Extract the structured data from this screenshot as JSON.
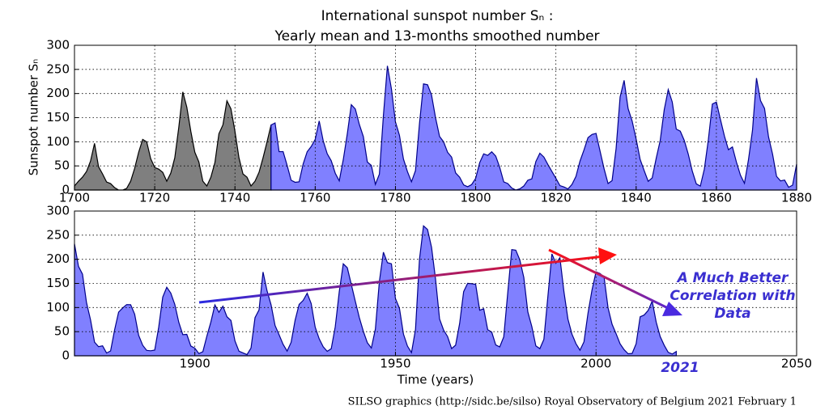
{
  "chart_data": [
    {
      "type": "area",
      "title": "International sunspot number Sₙ :",
      "subtitle": "Yearly mean and 13-months smoothed number",
      "ylabel": "Sunspot number Sₙ",
      "x": [
        1700,
        1701,
        1702,
        1703,
        1704,
        1705,
        1706,
        1707,
        1708,
        1709,
        1710,
        1711,
        1712,
        1713,
        1714,
        1715,
        1716,
        1717,
        1718,
        1719,
        1720,
        1721,
        1722,
        1723,
        1724,
        1725,
        1726,
        1727,
        1728,
        1729,
        1730,
        1731,
        1732,
        1733,
        1734,
        1735,
        1736,
        1737,
        1738,
        1739,
        1740,
        1741,
        1742,
        1743,
        1744,
        1745,
        1746,
        1747,
        1748,
        1749,
        1750,
        1751,
        1752,
        1753,
        1754,
        1755,
        1756,
        1757,
        1758,
        1759,
        1760,
        1761,
        1762,
        1763,
        1764,
        1765,
        1766,
        1767,
        1768,
        1769,
        1770,
        1771,
        1772,
        1773,
        1774,
        1775,
        1776,
        1777,
        1778,
        1779,
        1780,
        1781,
        1782,
        1783,
        1784,
        1785,
        1786,
        1787,
        1788,
        1789,
        1790,
        1791,
        1792,
        1793,
        1794,
        1795,
        1796,
        1797,
        1798,
        1799,
        1800,
        1801,
        1802,
        1803,
        1804,
        1805,
        1806,
        1807,
        1808,
        1809,
        1810,
        1811,
        1812,
        1813,
        1814,
        1815,
        1816,
        1817,
        1818,
        1819,
        1820,
        1821,
        1822,
        1823,
        1824,
        1825,
        1826,
        1827,
        1828,
        1829,
        1830,
        1831,
        1832,
        1833,
        1834,
        1835,
        1836,
        1837,
        1838,
        1839,
        1840,
        1841,
        1842,
        1843,
        1844,
        1845,
        1846,
        1847,
        1848,
        1849,
        1850,
        1851,
        1852,
        1853,
        1854,
        1855,
        1856,
        1857,
        1858,
        1859,
        1860,
        1861,
        1862,
        1863,
        1864,
        1865,
        1866,
        1867,
        1868,
        1869,
        1870,
        1871,
        1872,
        1873,
        1874,
        1875,
        1876,
        1877,
        1878,
        1879,
        1880
      ],
      "series": [
        {
          "color": "#7f7f7f",
          "edge_color": "#000000",
          "values": [
            8.3,
            18.3,
            26.7,
            38.3,
            60,
            96.7,
            48.3,
            33.3,
            16.7,
            13.3,
            5,
            0,
            0,
            3.3,
            18.3,
            45,
            78.3,
            105,
            100,
            65,
            46.7,
            43.3,
            36.7,
            18.3,
            35,
            66.7,
            130,
            203.3,
            171.7,
            121.7,
            78.3,
            58.3,
            18.3,
            8.3,
            26.7,
            56.7,
            116.7,
            135,
            185,
            168.3,
            121.7,
            66.7,
            33.3,
            26.7,
            8.3,
            18.3,
            36.7,
            66.7,
            100,
            134.8,
            null,
            null,
            null,
            null,
            null,
            null,
            null,
            null,
            null,
            null,
            null,
            null,
            null,
            null,
            null,
            null,
            null,
            null,
            null,
            null,
            null,
            null,
            null,
            null,
            null,
            null,
            null,
            null,
            null,
            null,
            null,
            null,
            null,
            null,
            null,
            null,
            null,
            null,
            null,
            null,
            null,
            null,
            null,
            null,
            null,
            null,
            null,
            null,
            null,
            null,
            null,
            null,
            null,
            null,
            null,
            null,
            null,
            null,
            null,
            null,
            null,
            null,
            null,
            null,
            null,
            null,
            null,
            null,
            null,
            null,
            null,
            null,
            null,
            null,
            null,
            null,
            null,
            null,
            null,
            null,
            null,
            null,
            null,
            null,
            null,
            null,
            null,
            null,
            null,
            null,
            null,
            null,
            null,
            null,
            null,
            null,
            null,
            null,
            null,
            null,
            null,
            null,
            null,
            null,
            null,
            null,
            null,
            null,
            null,
            null,
            null,
            null,
            null,
            null,
            null,
            null,
            null,
            null,
            null,
            null,
            null,
            null,
            null,
            null,
            null,
            null,
            null,
            null,
            null,
            null,
            null
          ]
        },
        {
          "color": "#8080ff",
          "edge_color": "#00008b",
          "values": [
            null,
            null,
            null,
            null,
            null,
            null,
            null,
            null,
            null,
            null,
            null,
            null,
            null,
            null,
            null,
            null,
            null,
            null,
            null,
            null,
            null,
            null,
            null,
            null,
            null,
            null,
            null,
            null,
            null,
            null,
            null,
            null,
            null,
            null,
            null,
            null,
            null,
            null,
            null,
            null,
            null,
            null,
            null,
            null,
            null,
            null,
            null,
            null,
            null,
            134.8,
            139,
            79.5,
            79.7,
            51.2,
            20.3,
            16,
            17,
            54,
            79.3,
            90,
            104.8,
            143.2,
            102,
            75.2,
            60.7,
            34.8,
            19,
            63,
            116.3,
            176.8,
            168,
            136,
            110.8,
            58,
            51,
            11.7,
            33,
            154.2,
            257.3,
            209.8,
            141.3,
            113.5,
            64.2,
            38,
            17,
            40.2,
            138.2,
            220,
            218.2,
            196.8,
            149.8,
            111,
            100,
            78.2,
            68.3,
            35.5,
            26.7,
            10.7,
            6.8,
            11.3,
            24.2,
            56.7,
            75,
            71.8,
            79.2,
            70.3,
            46.8,
            16.8,
            13.5,
            4.2,
            0,
            2.3,
            8.3,
            20.3,
            23.2,
            59,
            76.3,
            68.3,
            52.9,
            38.5,
            24.2,
            9.2,
            6.3,
            2.2,
            11.4,
            28.2,
            59.9,
            83,
            108.5,
            115.2,
            117.4,
            80.8,
            44.3,
            13.4,
            19.5,
            85.8,
            192.7,
            227.3,
            168.7,
            143,
            105.5,
            63.3,
            40.3,
            18.1,
            25.1,
            65.8,
            102.7,
            166.3,
            208.3,
            182.5,
            126.3,
            122,
            102.7,
            74.1,
            39,
            12.7,
            8.2,
            43.4,
            104.4,
            178.3,
            182.2,
            146.6,
            112.1,
            83.5,
            89.2,
            57.8,
            30.7,
            13.9,
            62.8,
            123.6,
            232,
            185.3,
            169.2,
            110.1,
            74.5,
            28.3,
            18.9,
            20.7,
            5.7,
            10,
            53.7
          ]
        }
      ],
      "xlim": [
        1700,
        1880
      ],
      "xticks": [
        1700,
        1720,
        1740,
        1760,
        1780,
        1800,
        1820,
        1840,
        1860,
        1880
      ],
      "ylim": [
        0,
        300
      ],
      "yticks": [
        0,
        50,
        100,
        150,
        200,
        250,
        300
      ],
      "grid": true
    },
    {
      "type": "area",
      "xlabel": "Time (years)",
      "x": [
        1870,
        1871,
        1872,
        1873,
        1874,
        1875,
        1876,
        1877,
        1878,
        1879,
        1880,
        1881,
        1882,
        1883,
        1884,
        1885,
        1886,
        1887,
        1888,
        1889,
        1890,
        1891,
        1892,
        1893,
        1894,
        1895,
        1896,
        1897,
        1898,
        1899,
        1900,
        1901,
        1902,
        1903,
        1904,
        1905,
        1906,
        1907,
        1908,
        1909,
        1910,
        1911,
        1912,
        1913,
        1914,
        1915,
        1916,
        1917,
        1918,
        1919,
        1920,
        1921,
        1922,
        1923,
        1924,
        1925,
        1926,
        1927,
        1928,
        1929,
        1930,
        1931,
        1932,
        1933,
        1934,
        1935,
        1936,
        1937,
        1938,
        1939,
        1940,
        1941,
        1942,
        1943,
        1944,
        1945,
        1946,
        1947,
        1948,
        1949,
        1950,
        1951,
        1952,
        1953,
        1954,
        1955,
        1956,
        1957,
        1958,
        1959,
        1960,
        1961,
        1962,
        1963,
        1964,
        1965,
        1966,
        1967,
        1968,
        1969,
        1970,
        1971,
        1972,
        1973,
        1974,
        1975,
        1976,
        1977,
        1978,
        1979,
        1980,
        1981,
        1982,
        1983,
        1984,
        1985,
        1986,
        1987,
        1988,
        1989,
        1990,
        1991,
        1992,
        1993,
        1994,
        1995,
        1996,
        1997,
        1998,
        1999,
        2000,
        2001,
        2002,
        2003,
        2004,
        2005,
        2006,
        2007,
        2008,
        2009,
        2010,
        2011,
        2012,
        2013,
        2014,
        2015,
        2016,
        2017,
        2018,
        2019,
        2020
      ],
      "series": [
        {
          "color": "#8080ff",
          "edge_color": "#00008b",
          "values": [
            232,
            185.3,
            169.2,
            110.1,
            74.5,
            28.3,
            18.9,
            20.7,
            5.7,
            10,
            53.7,
            90.5,
            99,
            106.1,
            105.8,
            86.3,
            42.4,
            21.8,
            11.2,
            10.4,
            11.8,
            59.5,
            121.7,
            142,
            130,
            106.6,
            69.4,
            43.8,
            44.4,
            20.2,
            15.7,
            4.6,
            8.5,
            40.8,
            70.1,
            105.5,
            90.1,
            102.8,
            80.9,
            73.2,
            30.9,
            9.5,
            6,
            2.4,
            16.1,
            79,
            95,
            173.6,
            134.6,
            105.7,
            62.7,
            43.5,
            23.7,
            9.7,
            27.9,
            74,
            106.5,
            114.7,
            129.7,
            108.2,
            59.4,
            35.1,
            18.6,
            9.2,
            14.6,
            60.2,
            132.8,
            190.6,
            182.6,
            148,
            113,
            79.2,
            50.8,
            27.1,
            16.1,
            55.3,
            154.3,
            214.7,
            193,
            190.7,
            118.9,
            98.3,
            45,
            20.1,
            6.6,
            54.2,
            200.7,
            269.3,
            261.7,
            225.1,
            159,
            76.4,
            53.4,
            39.9,
            15,
            22,
            66.8,
            132.9,
            150.2,
            149.4,
            148,
            94.4,
            97.6,
            54.1,
            49.2,
            22.5,
            18.4,
            39.3,
            131,
            220.1,
            218.9,
            198.9,
            162.4,
            91,
            60.5,
            20.6,
            14.8,
            33.9,
            123,
            211.1,
            191.8,
            203.3,
            133,
            76.1,
            44.9,
            25.1,
            11.6,
            28.9,
            88.3,
            136.3,
            173.9,
            170.4,
            163.6,
            99.3,
            65.3,
            45.8,
            24.7,
            12.6,
            4.2,
            4.8,
            24.9,
            80.8,
            84.5,
            94,
            113.3,
            69.8,
            39.8,
            21.7,
            7,
            3.6,
            8.8
          ]
        }
      ],
      "xlim": [
        1870,
        2050
      ],
      "xticks": [
        1900,
        1950,
        2000,
        2050
      ],
      "ylim": [
        0,
        300
      ],
      "yticks": [
        0,
        50,
        100,
        150,
        200,
        250,
        300
      ],
      "grid": true,
      "annotations": [
        "A Much Better",
        "Correlation with",
        "Data",
        "2021"
      ]
    }
  ],
  "footer": "SILSO graphics (http://sidc.be/silso)  Royal Observatory of Belgium  2021 February 1"
}
